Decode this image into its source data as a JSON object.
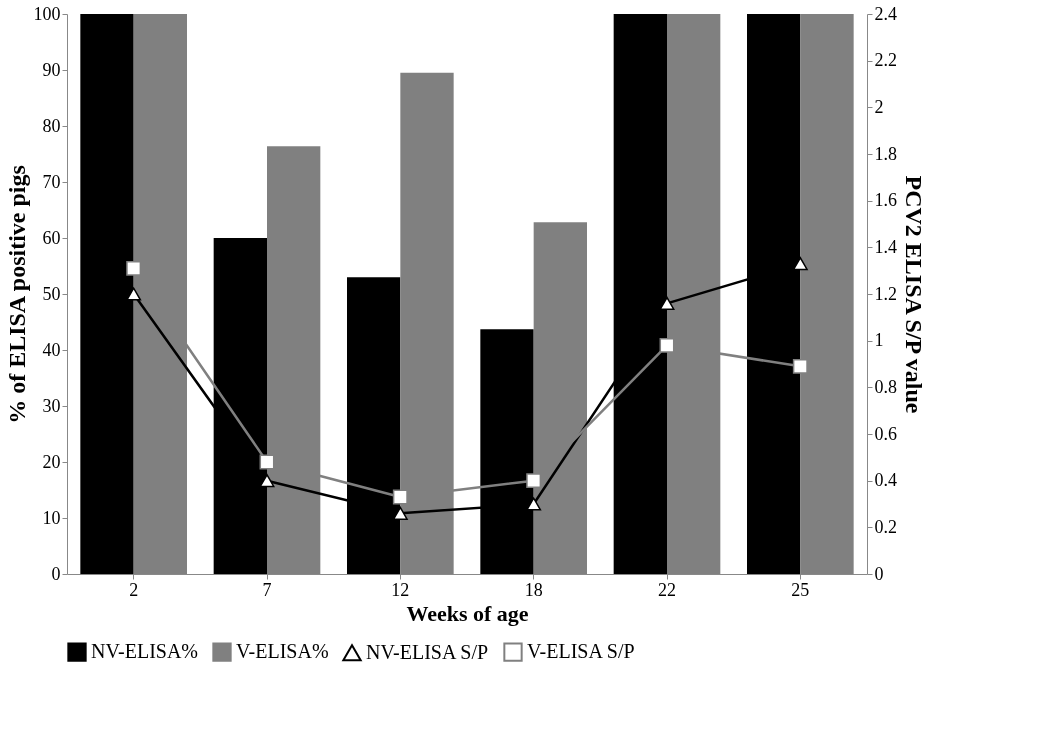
{
  "chart_data": {
    "type": "bar",
    "xlabel": "Weeks of age",
    "ylabel": "% of ELISA positive pigs",
    "y2label": "PCV2 ELISA S/P value",
    "categories": [
      "2",
      "7",
      "12",
      "18",
      "22",
      "25"
    ],
    "series": [
      {
        "name": "NV-ELISA%",
        "color": "#000000",
        "values": [
          100,
          60,
          53,
          43.7,
          100,
          100
        ]
      },
      {
        "name": "V-ELISA%",
        "color": "#808080",
        "values": [
          100,
          76.4,
          89.5,
          62.8,
          100,
          100
        ]
      },
      {
        "name": "NV-ELISA S/P",
        "type": "line",
        "axis": "y2",
        "marker": "triangle",
        "color": "#000000",
        "values": [
          1.2,
          0.4,
          0.26,
          0.3,
          1.16,
          1.33
        ]
      },
      {
        "name": "V-ELISA S/P",
        "type": "line",
        "axis": "y2",
        "marker": "square",
        "color": "#808080",
        "values": [
          1.31,
          0.48,
          0.33,
          0.4,
          0.98,
          0.89
        ]
      }
    ],
    "ylim": [
      0,
      100
    ],
    "yticks": [
      0,
      10,
      20,
      30,
      40,
      50,
      60,
      70,
      80,
      90,
      100
    ],
    "y2lim": [
      0,
      2.4
    ],
    "y2ticks": [
      {
        "value": 0,
        "label": "0"
      },
      0.2,
      0.4,
      0.6,
      0.8,
      {
        "value": 1,
        "label": "1"
      },
      1.2,
      1.4,
      1.6,
      1.8,
      {
        "value": 2,
        "label": "2"
      },
      2.2,
      2.4
    ],
    "grid": false,
    "legend": "bottom"
  }
}
